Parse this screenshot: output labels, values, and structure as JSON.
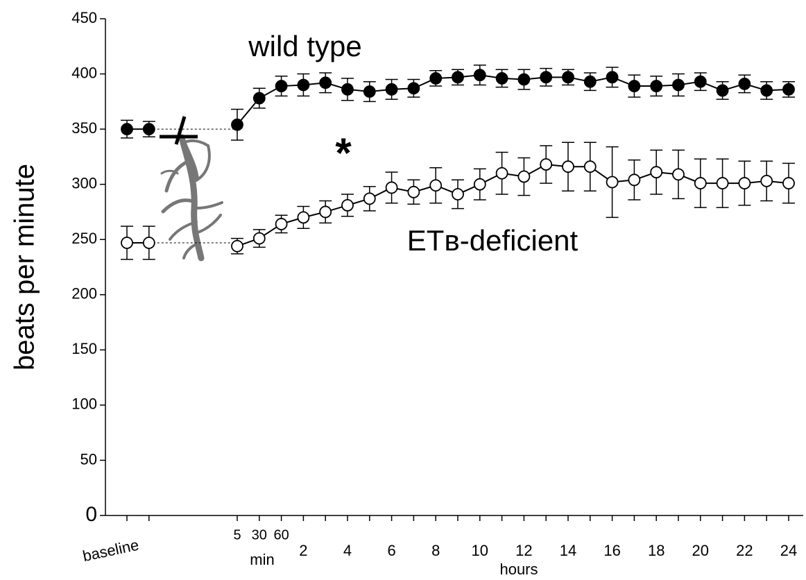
{
  "chart_data": {
    "type": "line",
    "y_label": "beats per minute",
    "categories": [
      null,
      null,
      "5",
      "30",
      "60",
      "2",
      null,
      "4",
      null,
      "6",
      null,
      "8",
      null,
      "10",
      null,
      "12",
      null,
      "14",
      null,
      "16",
      null,
      "18",
      null,
      "20",
      null,
      "22",
      null,
      "24"
    ],
    "x_group_labels": [
      "baseline",
      "min",
      "hours"
    ],
    "ylim": [
      0,
      450
    ],
    "yticks": [
      0,
      50,
      100,
      150,
      200,
      250,
      300,
      350,
      400,
      450
    ],
    "annotations": [
      "wild type",
      "*",
      "ETʙ-deficient"
    ],
    "series": [
      {
        "name": "wild type",
        "color": "#000000",
        "marker": "filled",
        "values": [
          350,
          350,
          354,
          378,
          389,
          390,
          392,
          386,
          384,
          386,
          387,
          396,
          397,
          399,
          396,
          395,
          397,
          397,
          393,
          397,
          389,
          389,
          390,
          393,
          385,
          391,
          385,
          386
        ],
        "errors": [
          8,
          7,
          14,
          9,
          9,
          10,
          9,
          10,
          9,
          9,
          8,
          7,
          7,
          9,
          8,
          9,
          8,
          7,
          8,
          9,
          10,
          9,
          10,
          8,
          8,
          8,
          8,
          7
        ]
      },
      {
        "name": "ETʙ-deficient",
        "color": "#000000",
        "marker": "open",
        "values": [
          247,
          247,
          244,
          251,
          264,
          270,
          275,
          281,
          287,
          297,
          293,
          299,
          291,
          300,
          310,
          307,
          318,
          316,
          316,
          302,
          304,
          311,
          309,
          301,
          301,
          301,
          303,
          301
        ],
        "errors": [
          15,
          15,
          7,
          8,
          8,
          10,
          10,
          10,
          11,
          14,
          11,
          16,
          13,
          14,
          19,
          17,
          17,
          22,
          22,
          32,
          18,
          20,
          22,
          22,
          22,
          20,
          18,
          18
        ]
      }
    ]
  }
}
